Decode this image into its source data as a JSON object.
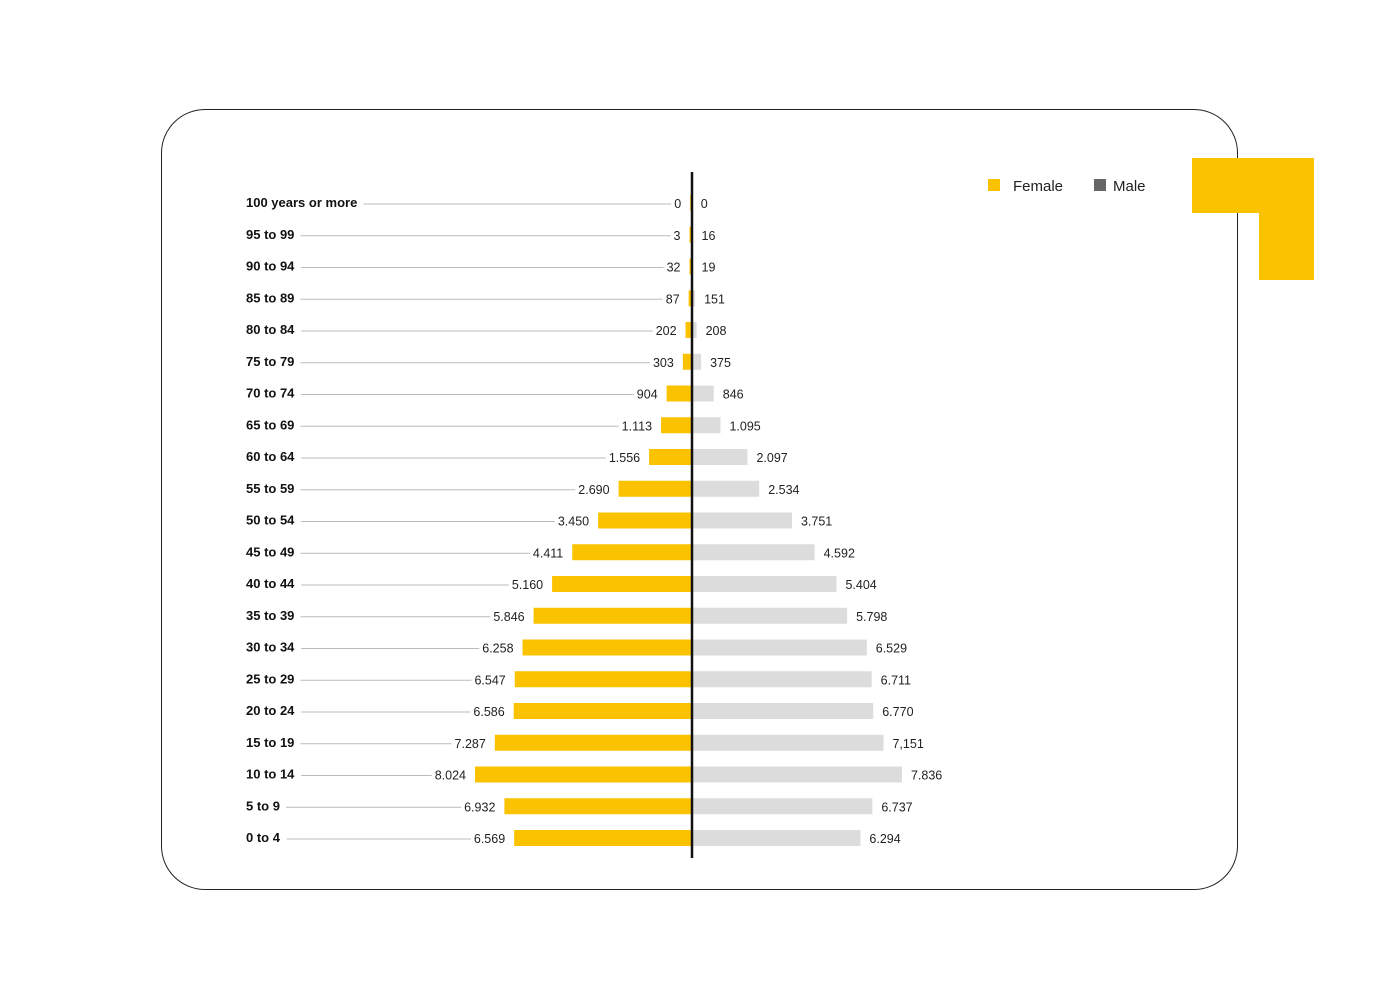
{
  "colors": {
    "female": "#FBC200",
    "male": "#DCDCDC",
    "legend_male": "#666666",
    "axis": "#111111",
    "leader": "#BBBBBB"
  },
  "chart_data": {
    "type": "bar",
    "categories": [
      "100 years or more",
      "95 to 99",
      "90 to 94",
      "85 to 89",
      "80 to 84",
      "75 to 79",
      "70 to 74",
      "65 to 69",
      "60 to 64",
      "55 to 59",
      "50 to 54",
      "45 to 49",
      "40 to 44",
      "35 to 39",
      "30 to 34",
      "25 to 29",
      "20 to 24",
      "15 to 19",
      "10 to 14",
      "5 to 9",
      "0 to 4"
    ],
    "series": [
      {
        "name": "Female",
        "values": [
          0,
          3,
          32,
          87,
          202,
          303,
          904,
          1113,
          1556,
          2690,
          3450,
          4411,
          5160,
          5846,
          6258,
          6547,
          6586,
          7287,
          8024,
          6932,
          6569
        ],
        "labels": [
          "0",
          "3",
          "32",
          "87",
          "202",
          "303",
          "904",
          "1.113",
          "1.556",
          "2.690",
          "3.450",
          "4.411",
          "5.160",
          "5.846",
          "6.258",
          "6.547",
          "6.586",
          "7.287",
          "8.024",
          "6.932",
          "6.569"
        ]
      },
      {
        "name": "Male",
        "values": [
          0,
          16,
          19,
          151,
          208,
          375,
          846,
          1095,
          2097,
          2534,
          3751,
          4592,
          5404,
          5798,
          6529,
          6711,
          6770,
          7151,
          7836,
          6737,
          6294
        ],
        "labels": [
          "0",
          "16",
          "19",
          "151",
          "208",
          "375",
          "846",
          "1.095",
          "2.097",
          "2.534",
          "3.751",
          "4.592",
          "5.404",
          "5.798",
          "6.529",
          "6.711",
          "6.770",
          "7,151",
          "7.836",
          "6.737",
          "6.294"
        ]
      }
    ],
    "legend": {
      "position": "top-right",
      "entries": [
        "Female",
        "Male"
      ]
    },
    "grid": false
  }
}
